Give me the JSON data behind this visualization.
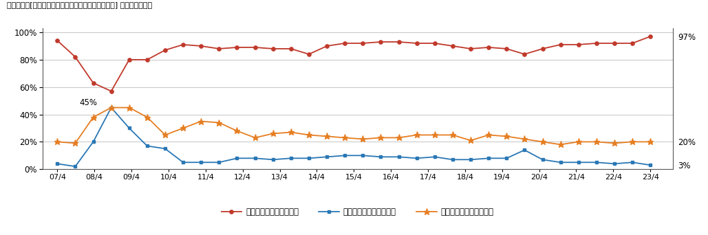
{
  "title": "（図表６）[今後１年間の不動産投資に対する考え方] ＊複数回答あり",
  "x_labels": [
    "07/4",
    "08/4",
    "09/4",
    "10/4",
    "11/4",
    "12/4",
    "13/4",
    "14/4",
    "15/4",
    "16/4",
    "17/4",
    "18/4",
    "19/4",
    "20/4",
    "21/4",
    "22/4",
    "23/4"
  ],
  "red_line": [
    94,
    82,
    63,
    57,
    80,
    80,
    87,
    91,
    90,
    88,
    89,
    89,
    88,
    88,
    84,
    90,
    92,
    92,
    93,
    93,
    92,
    92,
    90,
    88,
    89,
    88,
    84,
    88,
    91,
    91,
    92,
    92,
    92,
    97
  ],
  "blue_line": [
    4,
    2,
    20,
    45,
    30,
    17,
    15,
    5,
    5,
    5,
    8,
    8,
    7,
    8,
    8,
    9,
    10,
    10,
    9,
    9,
    8,
    9,
    7,
    7,
    8,
    8,
    14,
    7,
    5,
    5,
    5,
    4,
    5,
    3
  ],
  "orange_line": [
    20,
    19,
    38,
    45,
    45,
    38,
    25,
    30,
    35,
    34,
    28,
    23,
    26,
    27,
    25,
    24,
    23,
    22,
    23,
    23,
    25,
    25,
    25,
    21,
    25,
    24,
    22,
    20,
    18,
    20,
    20,
    19,
    20,
    20
  ],
  "annotation_text": "45%",
  "annotation_idx": 3,
  "red_color": "#c0392b",
  "blue_color": "#2977b5",
  "orange_color": "#e67e22",
  "legend_red": "新規投資を積極的に行う",
  "legend_blue": "当面、新規投資を控える",
  "legend_orange": "既存所有物件を売還する",
  "ylim": [
    0,
    100
  ],
  "yticks": [
    0,
    20,
    40,
    60,
    80,
    100
  ],
  "bg_color": "#ffffff",
  "grid_color": "#bbbbbb"
}
